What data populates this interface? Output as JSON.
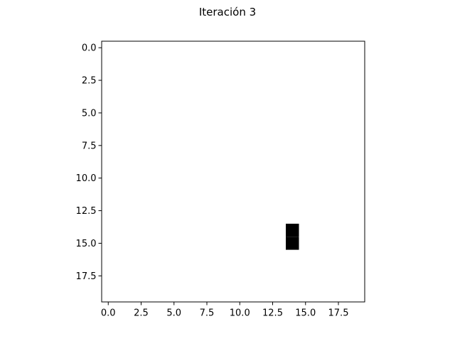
{
  "chart_data": {
    "type": "heatmap",
    "title": "Iteración 3",
    "xlabel": "",
    "ylabel": "",
    "grid_size": [
      20,
      20
    ],
    "xlim": [
      -0.5,
      19.5
    ],
    "ylim": [
      19.5,
      -0.5
    ],
    "y_inverted": true,
    "colormap": "binary",
    "background_value": 0,
    "filled_cells": [
      {
        "row": 14,
        "col": 14,
        "value": 1
      },
      {
        "row": 15,
        "col": 14,
        "value": 1
      }
    ],
    "x_ticks": [
      "0.0",
      "2.5",
      "5.0",
      "7.5",
      "10.0",
      "12.5",
      "15.0",
      "17.5"
    ],
    "y_ticks": [
      "0.0",
      "2.5",
      "5.0",
      "7.5",
      "10.0",
      "12.5",
      "15.0",
      "17.5"
    ],
    "grid": false,
    "legend": "none",
    "colors": {
      "filled": "#000000",
      "empty": "#ffffff",
      "axis": "#000000"
    }
  }
}
